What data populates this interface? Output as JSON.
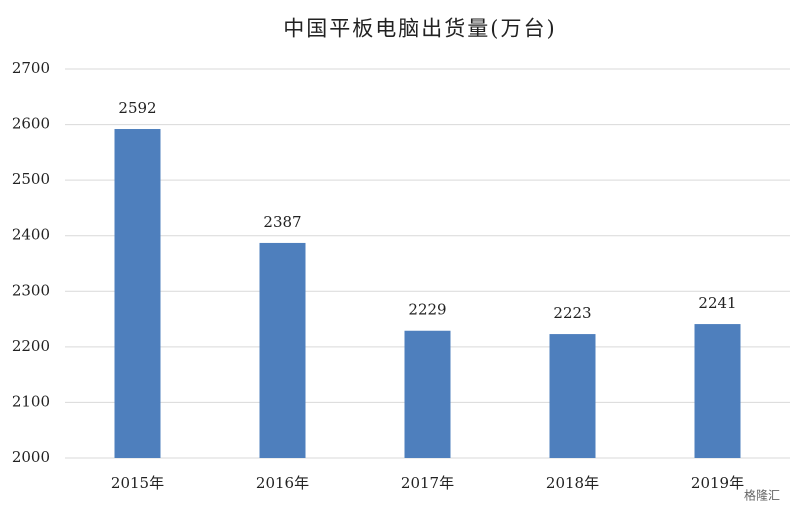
{
  "chart_data": {
    "type": "bar",
    "title": "中国平板电脑出货量(万台)",
    "categories": [
      "2015年",
      "2016年",
      "2017年",
      "2018年",
      "2019年"
    ],
    "values": [
      2592,
      2387,
      2229,
      2223,
      2241
    ],
    "color": "#4e7fbd",
    "ylim": [
      2000,
      2700
    ],
    "yticks": [
      2000,
      2100,
      2200,
      2300,
      2400,
      2500,
      2600,
      2700
    ],
    "grid": true,
    "watermark": "格隆汇"
  }
}
